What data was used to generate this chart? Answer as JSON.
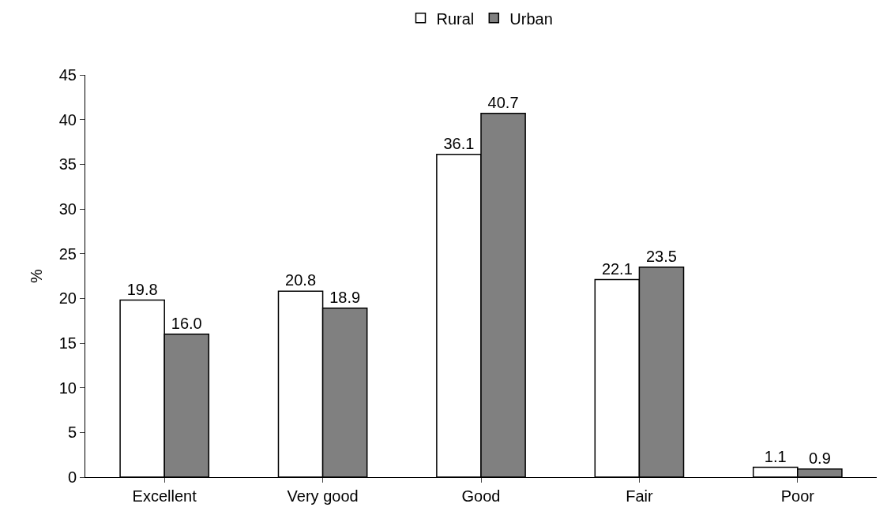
{
  "chart_data": {
    "type": "bar",
    "ylabel": "%",
    "categories": [
      "Excellent",
      "Very good",
      "Good",
      "Fair",
      "Poor"
    ],
    "series": [
      {
        "name": "Rural",
        "color": "#ffffff",
        "values": [
          19.8,
          20.8,
          36.1,
          22.1,
          1.1
        ],
        "value_labels": [
          "19.8",
          "20.8",
          "36.1",
          "22.1",
          "1.1"
        ]
      },
      {
        "name": "Urban",
        "color": "#808080",
        "values": [
          16.0,
          18.9,
          40.7,
          23.5,
          0.9
        ],
        "value_labels": [
          "16.0",
          "18.9",
          "40.7",
          "23.5",
          "0.9"
        ]
      }
    ],
    "ylim": [
      0,
      45
    ],
    "yticks": [
      0,
      5,
      10,
      15,
      20,
      25,
      30,
      35,
      40,
      45
    ],
    "legend": "top"
  }
}
